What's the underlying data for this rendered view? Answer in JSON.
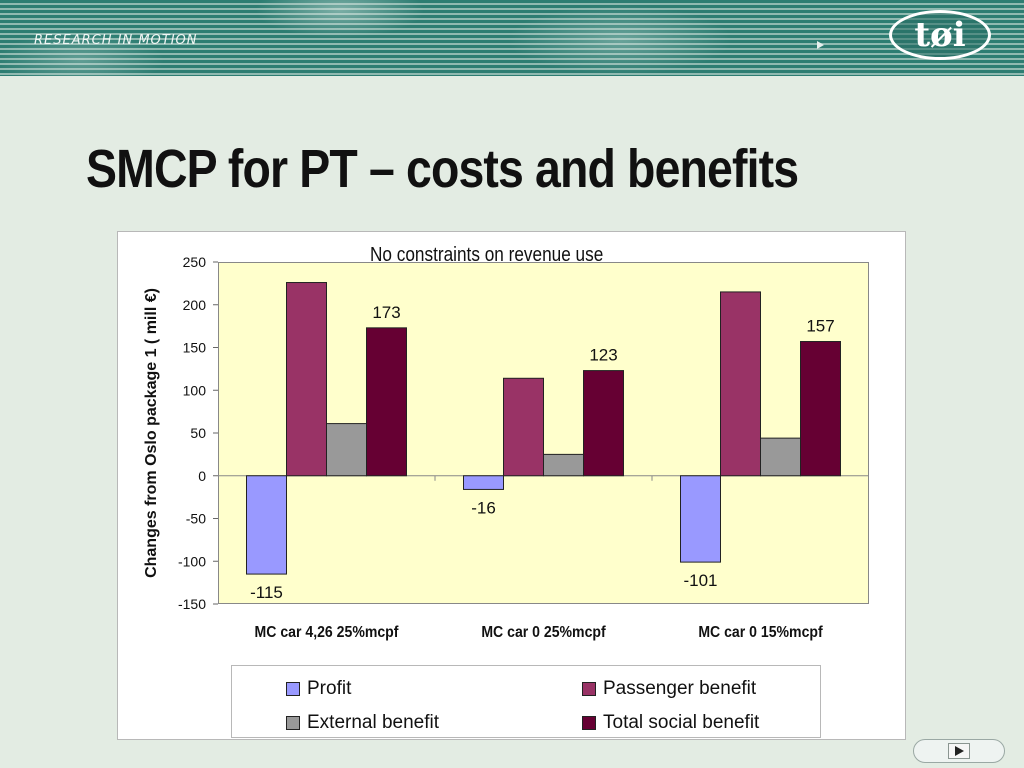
{
  "header": {
    "tagline": "RESEARCH IN MOTION",
    "logo_text": "tøi"
  },
  "slide": {
    "title": "SMCP for PT – costs and benefits"
  },
  "chart_data": {
    "type": "bar",
    "title": "No constraints on revenue use",
    "ylabel": "Changes from Oslo package 1 ( mill €)",
    "xlabel": "",
    "categories": [
      "MC car 4,26  25%mcpf",
      "MC car 0  25%mcpf",
      "MC car 0  15%mcpf"
    ],
    "ylim": [
      -150,
      250
    ],
    "yticks": [
      250,
      200,
      150,
      100,
      50,
      0,
      -50,
      -100,
      -150
    ],
    "series": [
      {
        "name": "Profit",
        "values": [
          -115,
          -16,
          -101
        ],
        "color": "#9999ff",
        "labeled": true
      },
      {
        "name": "Passenger benefit",
        "values": [
          226,
          114,
          215
        ],
        "color": "#993366",
        "labeled": false
      },
      {
        "name": "External benefit",
        "values": [
          61,
          25,
          44
        ],
        "color": "#999999",
        "labeled": false
      },
      {
        "name": "Total social benefit",
        "values": [
          173,
          123,
          157
        ],
        "color": "#660033",
        "labeled": true
      }
    ],
    "data_labels": [
      "-115",
      "173",
      "-16",
      "123",
      "-101",
      "157"
    ],
    "legend_position": "bottom",
    "background_color": "#ffffcc",
    "grid": false
  },
  "legend": {
    "items": [
      "Profit",
      "Passenger benefit",
      "External benefit",
      "Total social benefit"
    ]
  }
}
